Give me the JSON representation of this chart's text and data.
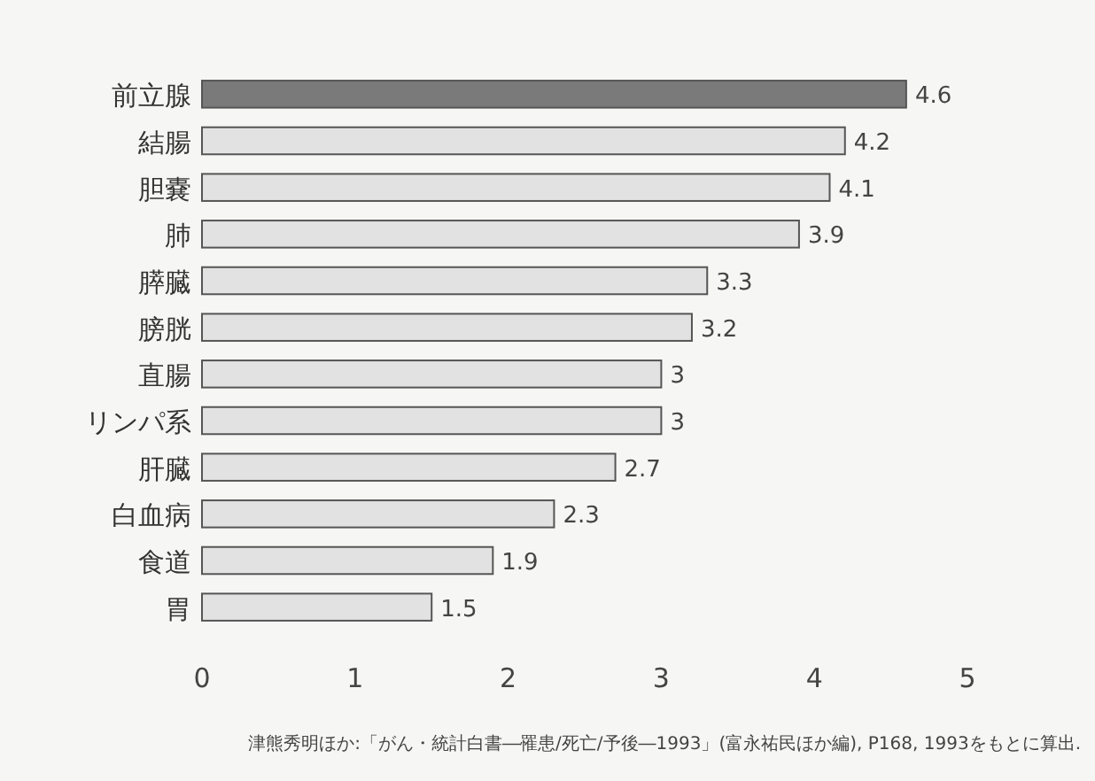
{
  "chart_data": {
    "type": "bar",
    "orientation": "horizontal",
    "categories": [
      "前立腺",
      "結腸",
      "胆嚢",
      "肺",
      "膵臓",
      "膀胱",
      "直腸",
      "リンパ系",
      "肝臓",
      "白血病",
      "食道",
      "胃"
    ],
    "values": [
      4.6,
      4.2,
      4.1,
      3.9,
      3.3,
      3.2,
      3,
      3,
      2.7,
      2.3,
      1.9,
      1.5
    ],
    "colors": [
      "#7a7a7a",
      "#e2e2e2",
      "#e2e2e2",
      "#e2e2e2",
      "#e2e2e2",
      "#e2e2e2",
      "#e2e2e2",
      "#e2e2e2",
      "#e2e2e2",
      "#e2e2e2",
      "#e2e2e2",
      "#e2e2e2"
    ],
    "data_labels": true,
    "xlim": [
      0,
      5
    ],
    "xticks": [
      0,
      1,
      2,
      3,
      4,
      5
    ],
    "grid": false,
    "annotations": [
      "津熊秀明ほか:「がん・統計白書―罹患/死亡/予後―1993」(富永祐民ほか編), P168, 1993をもとに算出."
    ]
  }
}
